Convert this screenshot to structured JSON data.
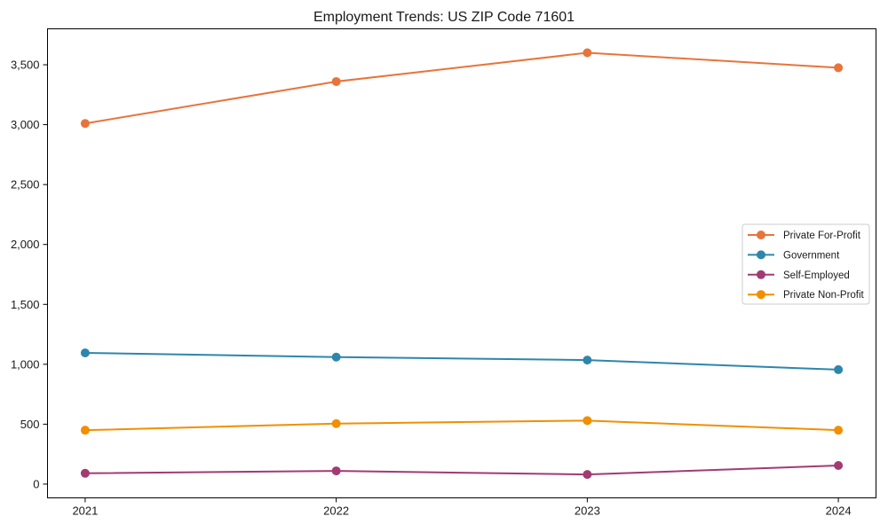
{
  "chart_data": {
    "type": "line",
    "title": "Employment Trends: US ZIP Code 71601",
    "x": [
      2021,
      2022,
      2023,
      2024
    ],
    "x_tick_labels": [
      "2021",
      "2022",
      "2023",
      "2024"
    ],
    "series": [
      {
        "name": "Private For-Profit",
        "color": "#E8743B",
        "values": [
          3010,
          3360,
          3600,
          3475
        ]
      },
      {
        "name": "Government",
        "color": "#2E86AB",
        "values": [
          1095,
          1060,
          1035,
          955
        ]
      },
      {
        "name": "Self-Employed",
        "color": "#A23B72",
        "values": [
          90,
          110,
          80,
          155
        ]
      },
      {
        "name": "Private Non-Profit",
        "color": "#F18F01",
        "values": [
          450,
          505,
          530,
          450
        ]
      }
    ],
    "xlabel": "",
    "ylabel": "",
    "xlim": [
      2020.85,
      2024.15
    ],
    "ylim": [
      -115,
      3800
    ],
    "yticks": [
      0,
      500,
      1000,
      1500,
      2000,
      2500,
      3000,
      3500
    ],
    "ytick_labels": [
      "0",
      "500",
      "1,000",
      "1,500",
      "2,000",
      "2,500",
      "3,000",
      "3,500"
    ],
    "grid": false,
    "legend_position": "right-center",
    "marker": "circle",
    "axis_color": "#000000",
    "text_color": "#1a1a1a",
    "background": "#ffffff"
  }
}
